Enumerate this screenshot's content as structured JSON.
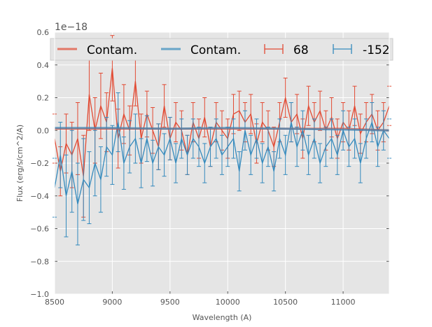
{
  "chart_data": {
    "type": "line",
    "xlabel": "Wavelength (A)",
    "ylabel": "Flux (erg/s/cm^2/A)",
    "offset_label": "1e−18",
    "xlim": [
      8500,
      11400
    ],
    "ylim": [
      -1.0,
      0.6
    ],
    "x_ticks": [
      8500,
      9000,
      9500,
      10000,
      10500,
      11000
    ],
    "x_tick_labels": [
      "8500",
      "9000",
      "9500",
      "10000",
      "10500",
      "11000"
    ],
    "y_ticks": [
      -1.0,
      -0.8,
      -0.6,
      -0.4,
      -0.2,
      0.0,
      0.2,
      0.4,
      0.6
    ],
    "y_tick_labels": [
      "−1.0",
      "−0.8",
      "−0.6",
      "−0.4",
      "−0.2",
      "0.0",
      "0.2",
      "0.4",
      "0.6"
    ],
    "grid": true,
    "legend_position": "top",
    "colors": {
      "red": "#e24a33",
      "blue": "#348abd",
      "background": "#e5e5e5"
    },
    "series": [
      {
        "name": "Contam.",
        "kind": "line",
        "color": "#e24a33",
        "x": [
          8500,
          9000,
          9500,
          10000,
          10500,
          11000,
          11400
        ],
        "y": [
          0.01,
          0.01,
          0.01,
          0.01,
          0.01,
          0.01,
          0.0
        ]
      },
      {
        "name": "Contam.",
        "kind": "line",
        "color": "#348abd",
        "x": [
          8500,
          9000,
          9500,
          10000,
          10500,
          11000,
          11400
        ],
        "y": [
          0.015,
          0.015,
          0.01,
          0.015,
          0.01,
          0.005,
          0.0
        ]
      },
      {
        "name": "68",
        "kind": "errorbar",
        "color": "#e24a33",
        "x": [
          8500,
          8550,
          8600,
          8650,
          8700,
          8750,
          8800,
          8850,
          8900,
          8950,
          9000,
          9050,
          9100,
          9150,
          9200,
          9250,
          9300,
          9350,
          9400,
          9450,
          9500,
          9550,
          9600,
          9650,
          9700,
          9750,
          9800,
          9850,
          9900,
          9950,
          10000,
          10050,
          10100,
          10150,
          10200,
          10250,
          10300,
          10350,
          10400,
          10450,
          10500,
          10550,
          10600,
          10650,
          10700,
          10750,
          10800,
          10850,
          10900,
          10950,
          11000,
          11050,
          11100,
          11150,
          11200,
          11250,
          11300,
          11350,
          11400
        ],
        "y": [
          -0.05,
          -0.25,
          -0.08,
          -0.15,
          -0.05,
          -0.28,
          0.22,
          0.0,
          0.15,
          0.05,
          0.38,
          -0.05,
          0.1,
          0.0,
          0.3,
          -0.05,
          0.1,
          0.0,
          -0.1,
          0.15,
          -0.05,
          0.05,
          0.0,
          -0.15,
          0.05,
          -0.05,
          0.08,
          -0.1,
          0.05,
          0.0,
          -0.05,
          0.1,
          0.12,
          0.05,
          0.1,
          -0.08,
          0.05,
          0.0,
          -0.1,
          0.05,
          0.2,
          0.05,
          0.1,
          -0.05,
          0.15,
          0.05,
          0.12,
          0.0,
          0.08,
          -0.05,
          0.05,
          0.0,
          0.15,
          -0.02,
          0.05,
          0.1,
          0.0,
          0.05,
          0.15
        ],
        "err": [
          0.15,
          0.15,
          0.18,
          0.2,
          0.22,
          0.25,
          0.22,
          0.2,
          0.2,
          0.18,
          0.2,
          0.18,
          0.18,
          0.15,
          0.15,
          0.15,
          0.14,
          0.14,
          0.14,
          0.13,
          0.13,
          0.12,
          0.12,
          0.12,
          0.12,
          0.12,
          0.12,
          0.12,
          0.12,
          0.12,
          0.12,
          0.12,
          0.12,
          0.12,
          0.12,
          0.12,
          0.12,
          0.12,
          0.12,
          0.12,
          0.12,
          0.12,
          0.12,
          0.12,
          0.12,
          0.12,
          0.12,
          0.12,
          0.12,
          0.12,
          0.12,
          0.12,
          0.12,
          0.12,
          0.12,
          0.12,
          0.12,
          0.12,
          0.12
        ]
      },
      {
        "name": "-152",
        "kind": "errorbar",
        "color": "#348abd",
        "x": [
          8500,
          8550,
          8600,
          8650,
          8700,
          8750,
          8800,
          8850,
          8900,
          8950,
          9000,
          9050,
          9100,
          9150,
          9200,
          9250,
          9300,
          9350,
          9400,
          9450,
          9500,
          9550,
          9600,
          9650,
          9700,
          9750,
          9800,
          9850,
          9900,
          9950,
          10000,
          10050,
          10100,
          10150,
          10200,
          10250,
          10300,
          10350,
          10400,
          10450,
          10500,
          10550,
          10600,
          10650,
          10700,
          10750,
          10800,
          10850,
          10900,
          10950,
          11000,
          11050,
          11100,
          11150,
          11200,
          11250,
          11300,
          11350,
          11400
        ],
        "y": [
          -0.35,
          -0.15,
          -0.4,
          -0.25,
          -0.45,
          -0.3,
          -0.35,
          -0.2,
          -0.3,
          -0.1,
          -0.15,
          0.05,
          -0.2,
          -0.1,
          -0.05,
          -0.2,
          -0.05,
          -0.2,
          -0.1,
          -0.15,
          -0.05,
          -0.2,
          -0.05,
          -0.15,
          -0.05,
          -0.1,
          -0.2,
          -0.1,
          -0.05,
          -0.15,
          -0.1,
          -0.05,
          -0.25,
          0.0,
          -0.15,
          -0.05,
          -0.2,
          -0.1,
          -0.25,
          -0.05,
          -0.15,
          0.05,
          -0.1,
          0.0,
          -0.15,
          -0.05,
          -0.2,
          -0.1,
          -0.05,
          -0.15,
          0.0,
          -0.1,
          -0.05,
          -0.2,
          -0.05,
          0.05,
          -0.1,
          0.0,
          -0.05
        ],
        "err": [
          0.18,
          0.2,
          0.25,
          0.25,
          0.25,
          0.25,
          0.22,
          0.2,
          0.2,
          0.18,
          0.18,
          0.18,
          0.16,
          0.16,
          0.15,
          0.15,
          0.14,
          0.14,
          0.14,
          0.13,
          0.13,
          0.12,
          0.12,
          0.12,
          0.12,
          0.12,
          0.12,
          0.12,
          0.12,
          0.12,
          0.12,
          0.12,
          0.12,
          0.12,
          0.12,
          0.12,
          0.12,
          0.12,
          0.12,
          0.12,
          0.12,
          0.12,
          0.12,
          0.12,
          0.12,
          0.12,
          0.12,
          0.12,
          0.12,
          0.12,
          0.12,
          0.12,
          0.12,
          0.12,
          0.12,
          0.12,
          0.12,
          0.12,
          0.12
        ]
      }
    ]
  }
}
